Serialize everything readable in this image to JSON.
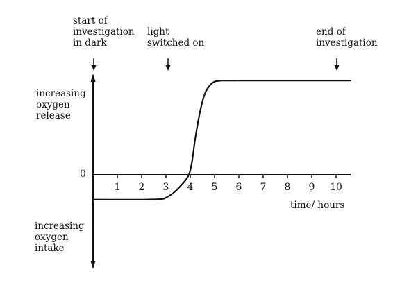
{
  "chart_data": {
    "type": "line",
    "title": "",
    "xlabel": "time/ hours",
    "ylabel_positive": [
      "increasing",
      "oxygen",
      "release"
    ],
    "ylabel_negative": [
      "increasing",
      "oxygen",
      "intake"
    ],
    "y_zero_label": "0",
    "xlim": [
      0,
      10.6
    ],
    "ylim": [
      -1.0,
      1.0
    ],
    "x_ticks": [
      1,
      2,
      3,
      4,
      5,
      6,
      7,
      8,
      9,
      10
    ],
    "x_tick_labels": [
      "1",
      "2",
      "3",
      "4",
      "5",
      "6",
      "7",
      "8",
      "9",
      "10"
    ],
    "grid": false,
    "series": [
      {
        "x": [
          0,
          1,
          2,
          2.8,
          3.0,
          3.3,
          3.6,
          3.9,
          4.05,
          4.2,
          4.4,
          4.6,
          4.8,
          5.0,
          5.3,
          6,
          7,
          8,
          9,
          10,
          10.6
        ],
        "y": [
          -0.245,
          -0.245,
          -0.245,
          -0.24,
          -0.225,
          -0.18,
          -0.11,
          -0.02,
          0.1,
          0.35,
          0.62,
          0.8,
          0.88,
          0.92,
          0.93,
          0.93,
          0.93,
          0.93,
          0.93,
          0.93,
          0.93
        ]
      }
    ],
    "annotations": [
      {
        "x": 0,
        "lines": [
          "start of",
          "investigation",
          "in dark"
        ]
      },
      {
        "x": 3,
        "lines": [
          "light",
          "switched on"
        ]
      },
      {
        "x": 10,
        "lines": [
          "end of",
          "investigation"
        ]
      }
    ]
  }
}
